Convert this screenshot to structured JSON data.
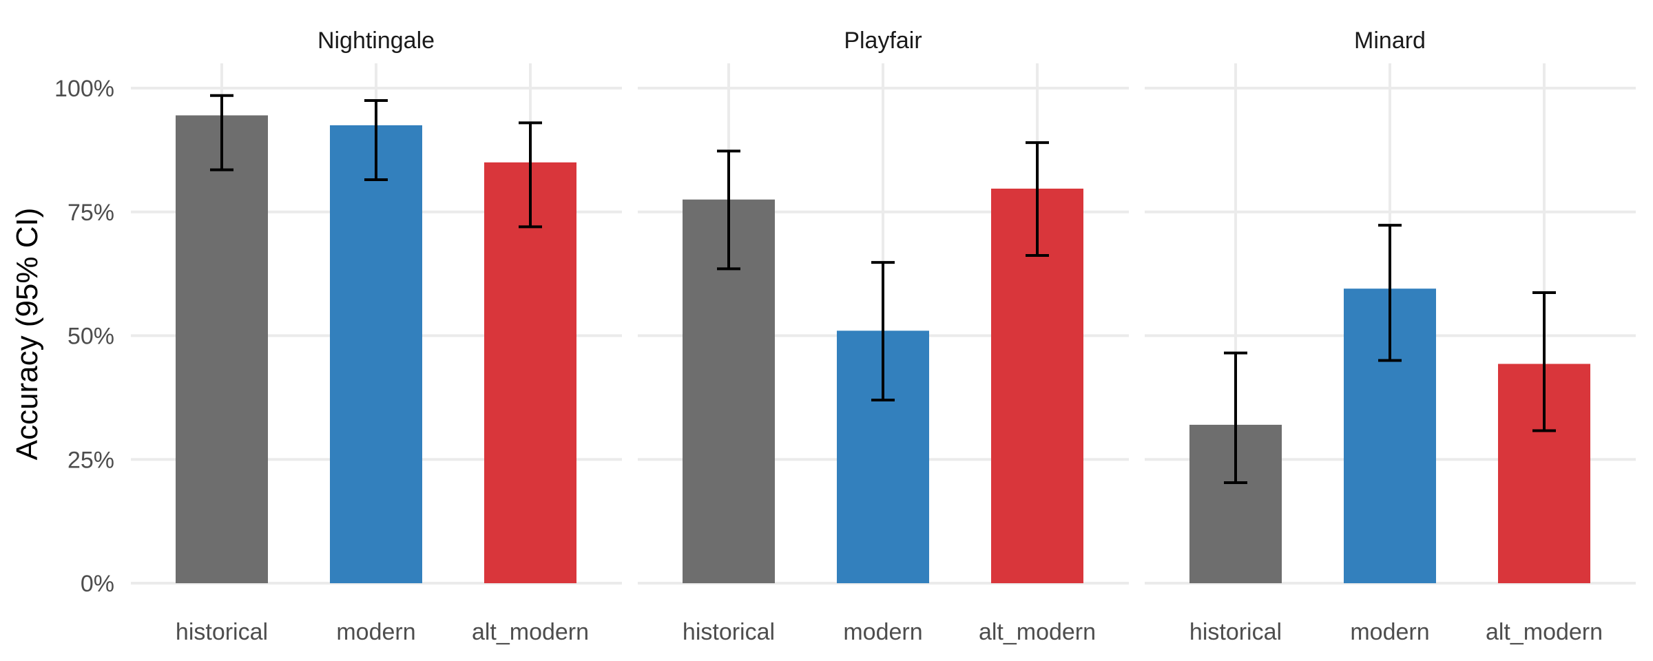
{
  "chart_data": {
    "type": "bar",
    "ylabel": "Accuracy (95% CI)",
    "ylim": [
      0,
      1
    ],
    "y_ticks": [
      "0%",
      "25%",
      "50%",
      "75%",
      "100%"
    ],
    "y_tick_values": [
      0,
      0.25,
      0.5,
      0.75,
      1.0
    ],
    "grid": true,
    "categories": [
      "historical",
      "modern",
      "alt_modern"
    ],
    "colors": {
      "historical": "#6e6e6e",
      "modern": "#3380bd",
      "alt_modern": "#d9363b"
    },
    "panels": [
      {
        "name": "Nightingale",
        "values": [
          0.945,
          0.925,
          0.85
        ],
        "ci_low": [
          0.835,
          0.815,
          0.72
        ],
        "ci_high": [
          0.985,
          0.975,
          0.93
        ]
      },
      {
        "name": "Playfair",
        "values": [
          0.775,
          0.51,
          0.797
        ],
        "ci_low": [
          0.635,
          0.37,
          0.662
        ],
        "ci_high": [
          0.873,
          0.648,
          0.89
        ]
      },
      {
        "name": "Minard",
        "values": [
          0.32,
          0.595,
          0.443
        ],
        "ci_low": [
          0.203,
          0.45,
          0.308
        ],
        "ci_high": [
          0.465,
          0.723,
          0.587
        ]
      }
    ]
  }
}
